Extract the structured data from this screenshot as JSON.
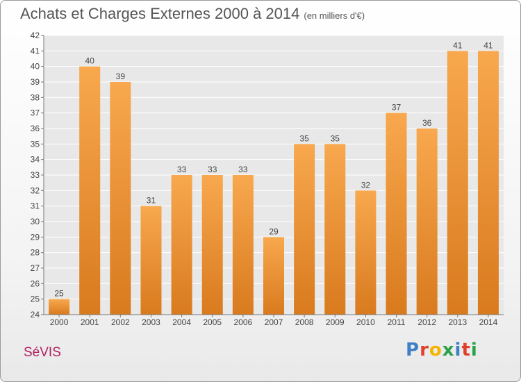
{
  "header": {
    "title": "Achats et Charges Externes 2000 à 2014",
    "subtitle": "(en milliers d'€)"
  },
  "footer": {
    "place": "SéVIS",
    "logo": "Proxiti"
  },
  "colors": {
    "bar_light": "#f8a84e",
    "bar_dark": "#d97a1e",
    "place_text": "#b0205f",
    "logo_letters": [
      "#3f7fc5",
      "#e0402a",
      "#f5b400",
      "#2aa14a",
      "#3f7fc5",
      "#e0402a",
      "#2aa14a"
    ]
  },
  "chart_data": {
    "type": "bar",
    "title": "Achats et Charges Externes 2000 à 2014",
    "subtitle": "(en milliers d'€)",
    "categories": [
      "2000",
      "2001",
      "2002",
      "2003",
      "2004",
      "2005",
      "2006",
      "2007",
      "2008",
      "2009",
      "2010",
      "2011",
      "2012",
      "2013",
      "2014"
    ],
    "values": [
      25,
      40,
      39,
      31,
      33,
      33,
      33,
      29,
      35,
      35,
      32,
      37,
      36,
      41,
      41
    ],
    "ylim": [
      24,
      42
    ],
    "yticks": [
      24,
      25,
      26,
      27,
      28,
      29,
      30,
      31,
      32,
      33,
      34,
      35,
      36,
      37,
      38,
      39,
      40,
      41,
      42
    ],
    "grid": true,
    "legend": "none"
  }
}
